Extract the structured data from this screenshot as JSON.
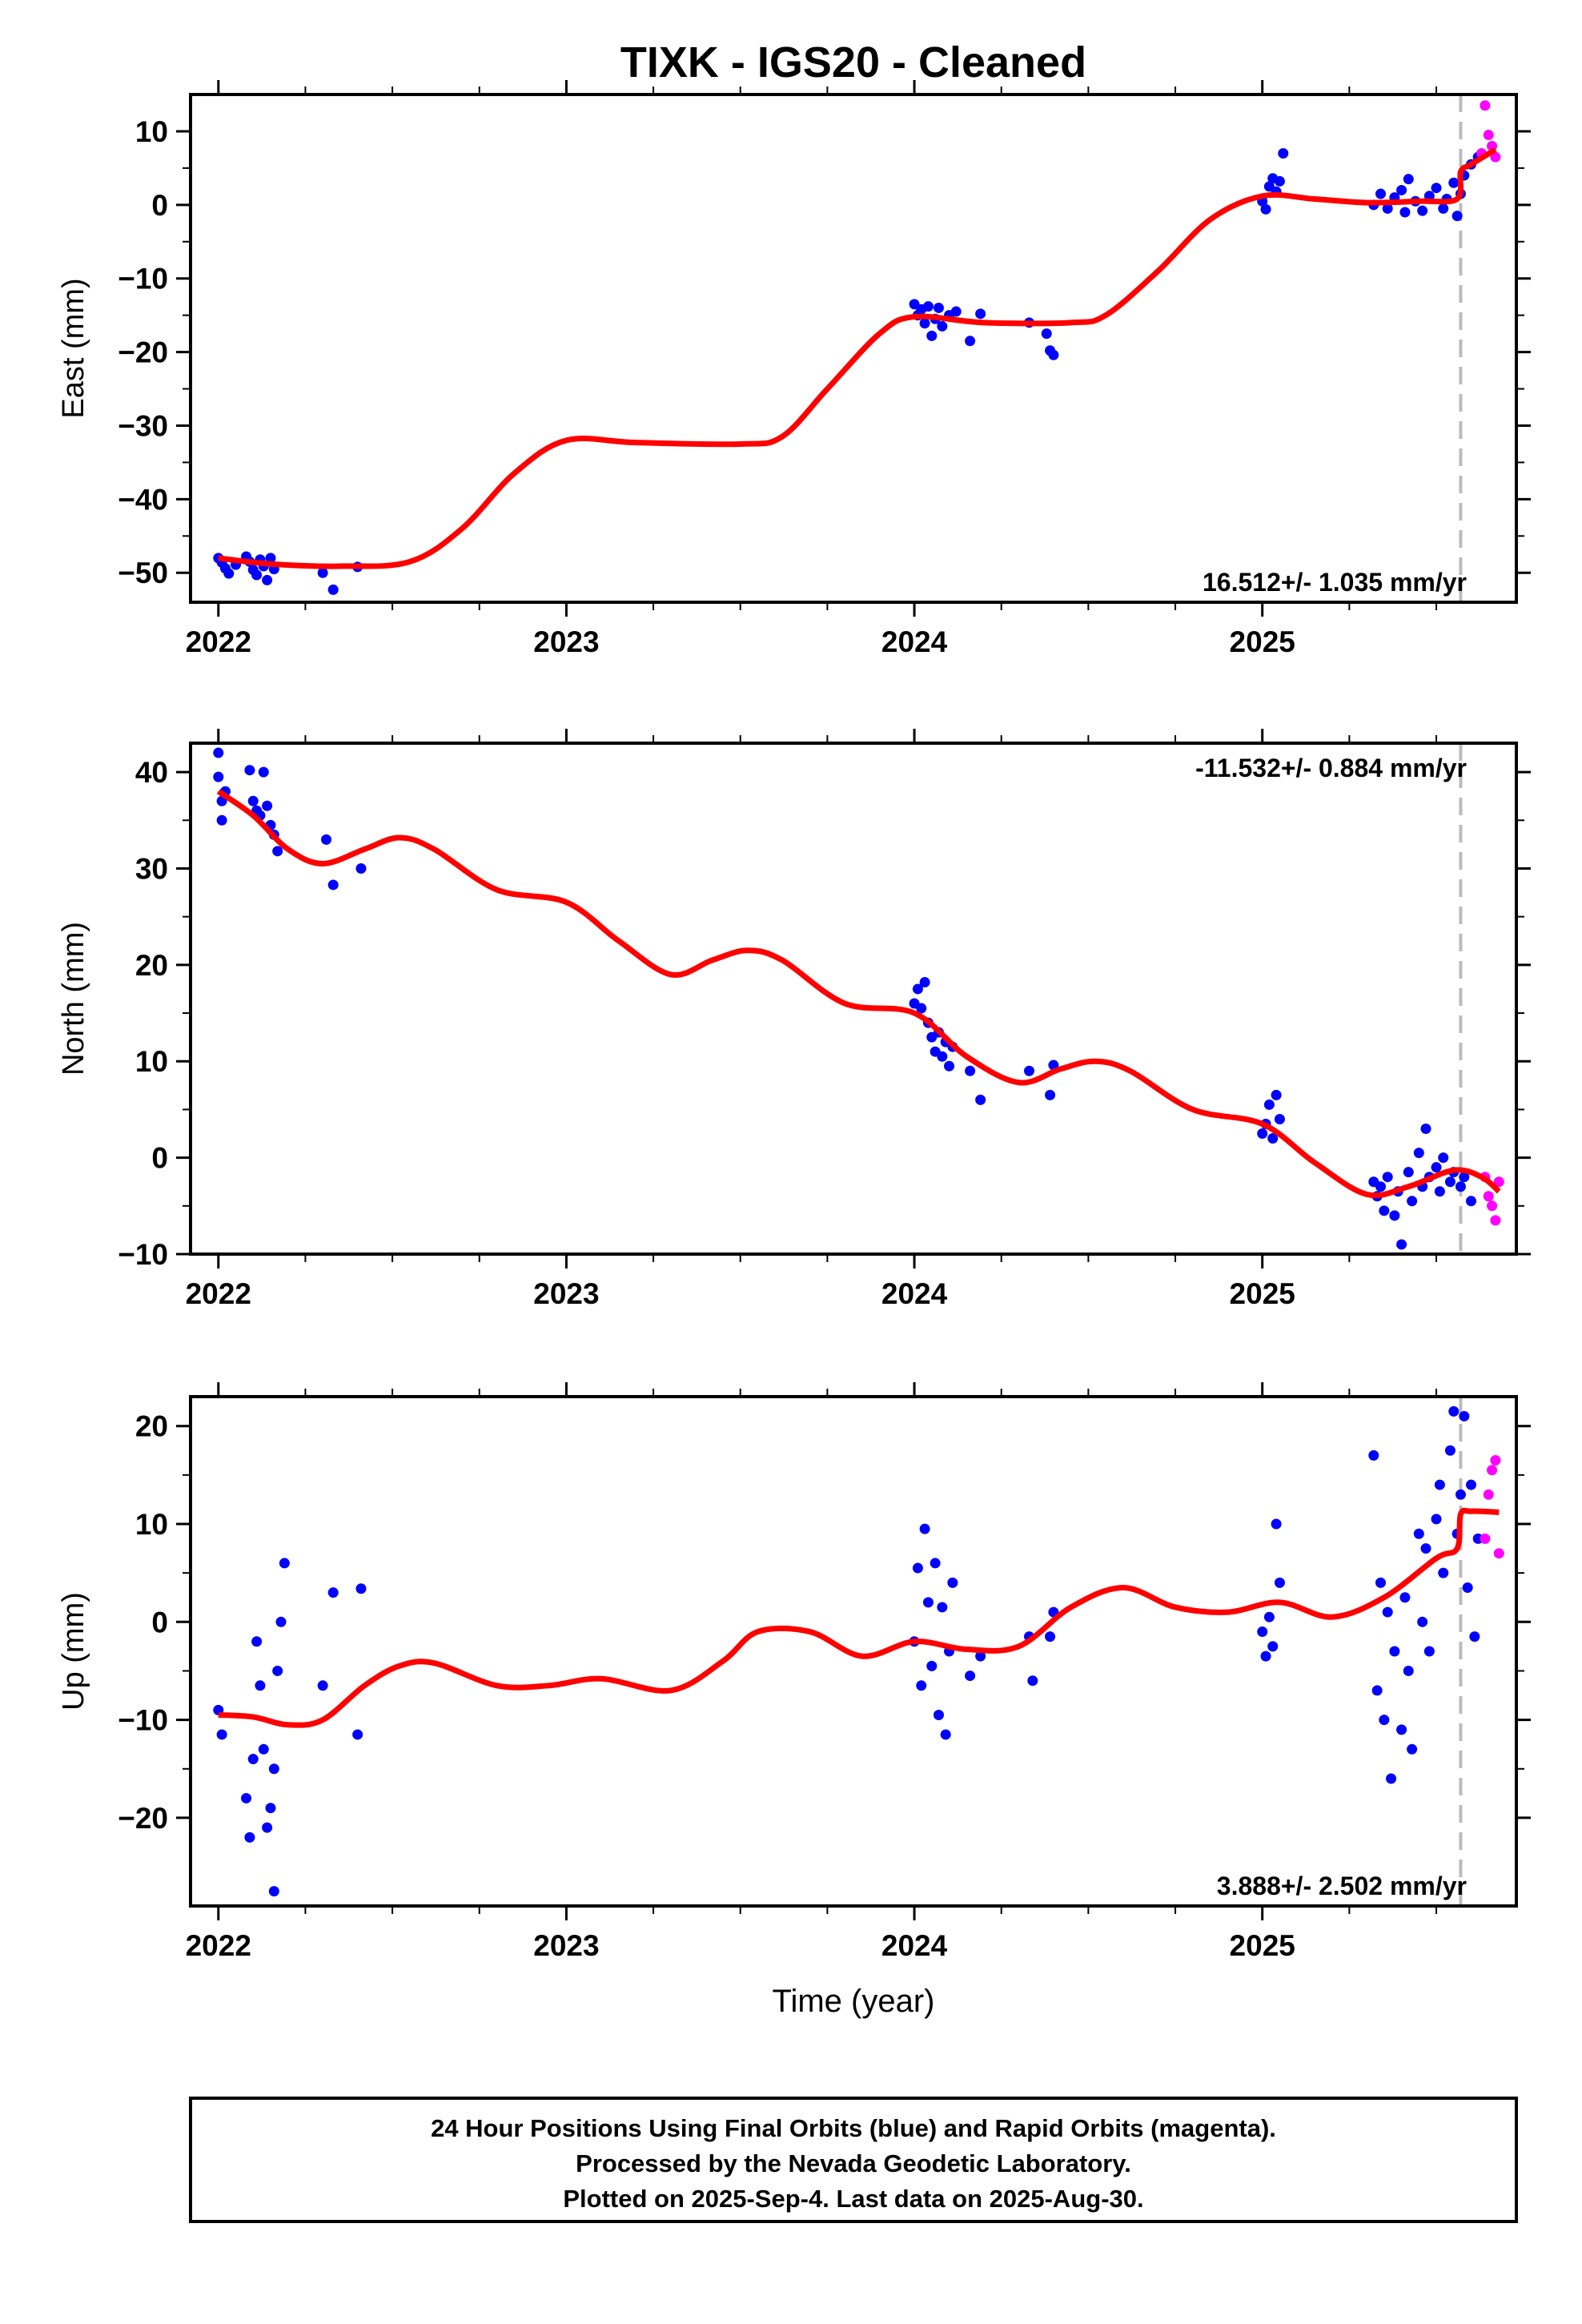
{
  "title": "TIXK  - IGS20 - Cleaned",
  "xlabel": "Time (year)",
  "colors": {
    "final": "#0000ff",
    "rapid": "#ff00ff",
    "model": "#ff0000",
    "dashed": "#bbbbbb"
  },
  "chart_data": [
    {
      "type": "scatter",
      "ylabel": "East (mm)",
      "xlim": [
        2021.92,
        2025.73
      ],
      "ylim": [
        -54,
        15
      ],
      "xticks": [
        2022,
        2023,
        2024,
        2025
      ],
      "yticks": [
        -50,
        -40,
        -30,
        -20,
        -10,
        0,
        10
      ],
      "rate_label": "16.512+/- 1.035 mm/yr",
      "rate_position": "bottom-right",
      "dashed_line_x": 2025.57,
      "final": [
        [
          2022.0,
          -48.0
        ],
        [
          2022.01,
          -48.6
        ],
        [
          2022.02,
          -49.4
        ],
        [
          2022.03,
          -50.1
        ],
        [
          2022.05,
          -48.9
        ],
        [
          2022.08,
          -47.8
        ],
        [
          2022.09,
          -48.5
        ],
        [
          2022.1,
          -49.6
        ],
        [
          2022.11,
          -50.3
        ],
        [
          2022.12,
          -48.2
        ],
        [
          2022.13,
          -49.1
        ],
        [
          2022.14,
          -51.0
        ],
        [
          2022.15,
          -48.0
        ],
        [
          2022.16,
          -49.5
        ],
        [
          2022.3,
          -50.0
        ],
        [
          2022.33,
          -52.3
        ],
        [
          2022.4,
          -49.2
        ],
        [
          2025.0,
          0.5
        ],
        [
          2025.01,
          -0.6
        ],
        [
          2025.02,
          2.5
        ],
        [
          2025.03,
          3.6
        ],
        [
          2025.04,
          1.8
        ],
        [
          2025.05,
          3.2
        ],
        [
          2025.06,
          7.0
        ],
        [
          2025.32,
          0.0
        ],
        [
          2025.34,
          1.5
        ],
        [
          2025.36,
          -0.5
        ],
        [
          2025.38,
          1.0
        ],
        [
          2025.4,
          2.0
        ],
        [
          2025.41,
          -1.0
        ],
        [
          2025.42,
          3.5
        ],
        [
          2025.44,
          0.5
        ],
        [
          2025.46,
          -0.8
        ],
        [
          2025.48,
          1.2
        ],
        [
          2025.5,
          2.3
        ],
        [
          2025.52,
          -0.5
        ],
        [
          2025.53,
          0.8
        ],
        [
          2025.55,
          3.0
        ],
        [
          2025.56,
          -1.5
        ],
        [
          2025.57,
          1.5
        ],
        [
          2025.58,
          4.0
        ],
        [
          2025.6,
          5.5
        ],
        [
          2025.62,
          6.5
        ],
        [
          2024.0,
          -13.5
        ],
        [
          2024.01,
          -15.0
        ],
        [
          2024.02,
          -14.2
        ],
        [
          2024.03,
          -16.1
        ],
        [
          2024.04,
          -13.8
        ],
        [
          2024.05,
          -17.8
        ],
        [
          2024.06,
          -15.5
        ],
        [
          2024.07,
          -14.0
        ],
        [
          2024.08,
          -16.5
        ],
        [
          2024.1,
          -15.0
        ],
        [
          2024.12,
          -14.5
        ],
        [
          2024.16,
          -18.5
        ],
        [
          2024.19,
          -14.8
        ],
        [
          2024.33,
          -16.0
        ],
        [
          2024.38,
          -17.5
        ],
        [
          2024.39,
          -19.8
        ],
        [
          2024.4,
          -20.4
        ]
      ],
      "rapid": [
        [
          2025.63,
          7.0
        ],
        [
          2025.64,
          13.5
        ],
        [
          2025.65,
          9.5
        ],
        [
          2025.66,
          8.0
        ],
        [
          2025.67,
          6.5
        ]
      ],
      "model": [
        [
          2022.0,
          -48.0
        ],
        [
          2022.15,
          -48.8
        ],
        [
          2022.35,
          -49.1
        ],
        [
          2022.55,
          -48.5
        ],
        [
          2022.7,
          -44.0
        ],
        [
          2022.85,
          -36.5
        ],
        [
          2023.0,
          -32.0
        ],
        [
          2023.2,
          -32.3
        ],
        [
          2023.5,
          -32.5
        ],
        [
          2023.62,
          -31.5
        ],
        [
          2023.75,
          -25.0
        ],
        [
          2023.9,
          -17.5
        ],
        [
          2024.0,
          -15.2
        ],
        [
          2024.2,
          -16.0
        ],
        [
          2024.45,
          -16.0
        ],
        [
          2024.55,
          -15.0
        ],
        [
          2024.7,
          -9.0
        ],
        [
          2024.85,
          -2.0
        ],
        [
          2025.0,
          1.2
        ],
        [
          2025.15,
          0.8
        ],
        [
          2025.3,
          0.3
        ],
        [
          2025.45,
          0.5
        ],
        [
          2025.56,
          0.8
        ],
        [
          2025.57,
          4.5
        ],
        [
          2025.6,
          5.5
        ],
        [
          2025.67,
          7.5
        ]
      ]
    },
    {
      "type": "scatter",
      "ylabel": "North (mm)",
      "xlim": [
        2021.92,
        2025.73
      ],
      "ylim": [
        -10,
        43
      ],
      "xticks": [
        2022,
        2023,
        2024,
        2025
      ],
      "yticks": [
        -10,
        0,
        10,
        20,
        30,
        40
      ],
      "rate_label": "-11.532+/- 0.884 mm/yr",
      "rate_position": "top-right",
      "dashed_line_x": 2025.57,
      "final": [
        [
          2022.0,
          42.0
        ],
        [
          2022.0,
          39.5
        ],
        [
          2022.01,
          37.0
        ],
        [
          2022.01,
          35.0
        ],
        [
          2022.02,
          38.0
        ],
        [
          2022.09,
          40.2
        ],
        [
          2022.1,
          37.0
        ],
        [
          2022.11,
          36.0
        ],
        [
          2022.12,
          35.5
        ],
        [
          2022.13,
          40.0
        ],
        [
          2022.14,
          36.5
        ],
        [
          2022.15,
          34.5
        ],
        [
          2022.16,
          33.5
        ],
        [
          2022.17,
          31.8
        ],
        [
          2022.31,
          33.0
        ],
        [
          2022.33,
          28.3
        ],
        [
          2022.41,
          30.0
        ],
        [
          2024.0,
          16.0
        ],
        [
          2024.01,
          17.5
        ],
        [
          2024.02,
          15.5
        ],
        [
          2024.03,
          18.2
        ],
        [
          2024.04,
          14.0
        ],
        [
          2024.05,
          12.5
        ],
        [
          2024.06,
          11.0
        ],
        [
          2024.07,
          13.0
        ],
        [
          2024.08,
          10.5
        ],
        [
          2024.09,
          12.0
        ],
        [
          2024.1,
          9.5
        ],
        [
          2024.11,
          11.5
        ],
        [
          2024.16,
          9.0
        ],
        [
          2024.19,
          6.0
        ],
        [
          2024.33,
          9.0
        ],
        [
          2024.39,
          6.5
        ],
        [
          2024.4,
          9.6
        ],
        [
          2025.0,
          2.5
        ],
        [
          2025.01,
          3.5
        ],
        [
          2025.02,
          5.5
        ],
        [
          2025.03,
          2.0
        ],
        [
          2025.04,
          6.5
        ],
        [
          2025.05,
          4.0
        ],
        [
          2025.32,
          -2.5
        ],
        [
          2025.33,
          -4.0
        ],
        [
          2025.34,
          -3.0
        ],
        [
          2025.35,
          -5.5
        ],
        [
          2025.36,
          -2.0
        ],
        [
          2025.38,
          -6.0
        ],
        [
          2025.39,
          -3.5
        ],
        [
          2025.4,
          -9.0
        ],
        [
          2025.42,
          -1.5
        ],
        [
          2025.43,
          -4.5
        ],
        [
          2025.45,
          0.5
        ],
        [
          2025.46,
          -3.0
        ],
        [
          2025.47,
          3.0
        ],
        [
          2025.48,
          -2.0
        ],
        [
          2025.5,
          -1.0
        ],
        [
          2025.51,
          -3.5
        ],
        [
          2025.52,
          0.0
        ],
        [
          2025.54,
          -2.5
        ],
        [
          2025.55,
          -1.5
        ],
        [
          2025.57,
          -3.0
        ],
        [
          2025.58,
          -2.0
        ],
        [
          2025.6,
          -4.5
        ]
      ],
      "rapid": [
        [
          2025.64,
          -2.0
        ],
        [
          2025.65,
          -4.0
        ],
        [
          2025.66,
          -5.0
        ],
        [
          2025.67,
          -6.5
        ],
        [
          2025.68,
          -2.5
        ]
      ],
      "model": [
        [
          2022.0,
          38.0
        ],
        [
          2022.1,
          35.5
        ],
        [
          2022.2,
          32.0
        ],
        [
          2022.3,
          30.5
        ],
        [
          2022.42,
          32.0
        ],
        [
          2022.52,
          33.2
        ],
        [
          2022.62,
          32.0
        ],
        [
          2022.8,
          27.8
        ],
        [
          2023.0,
          26.5
        ],
        [
          2023.15,
          22.5
        ],
        [
          2023.3,
          19.0
        ],
        [
          2023.42,
          20.5
        ],
        [
          2023.52,
          21.5
        ],
        [
          2023.62,
          20.5
        ],
        [
          2023.8,
          16.0
        ],
        [
          2024.0,
          15.0
        ],
        [
          2024.15,
          10.5
        ],
        [
          2024.3,
          7.8
        ],
        [
          2024.42,
          9.2
        ],
        [
          2024.52,
          10.0
        ],
        [
          2024.62,
          9.0
        ],
        [
          2024.8,
          5.0
        ],
        [
          2025.0,
          3.5
        ],
        [
          2025.15,
          -0.5
        ],
        [
          2025.3,
          -3.8
        ],
        [
          2025.42,
          -3.0
        ],
        [
          2025.55,
          -1.3
        ],
        [
          2025.63,
          -2.0
        ],
        [
          2025.68,
          -3.5
        ]
      ]
    },
    {
      "type": "scatter",
      "ylabel": "Up (mm)",
      "xlim": [
        2021.92,
        2025.73
      ],
      "ylim": [
        -29,
        23
      ],
      "xticks": [
        2022,
        2023,
        2024,
        2025
      ],
      "yticks": [
        -20,
        -10,
        0,
        10,
        20
      ],
      "rate_label": "3.888+/- 2.502 mm/yr",
      "rate_position": "bottom-right",
      "dashed_line_x": 2025.57,
      "final": [
        [
          2022.0,
          -9.0
        ],
        [
          2022.01,
          -11.5
        ],
        [
          2022.08,
          -18.0
        ],
        [
          2022.09,
          -22.0
        ],
        [
          2022.1,
          -14.0
        ],
        [
          2022.11,
          -2.0
        ],
        [
          2022.12,
          -6.5
        ],
        [
          2022.13,
          -13.0
        ],
        [
          2022.14,
          -21.0
        ],
        [
          2022.15,
          -19.0
        ],
        [
          2022.16,
          -15.0
        ],
        [
          2022.17,
          -5.0
        ],
        [
          2022.18,
          0.0
        ],
        [
          2022.19,
          6.0
        ],
        [
          2022.16,
          -27.5
        ],
        [
          2022.3,
          -6.5
        ],
        [
          2022.33,
          3.0
        ],
        [
          2022.4,
          -11.5
        ],
        [
          2022.41,
          3.4
        ],
        [
          2024.0,
          -2.0
        ],
        [
          2024.01,
          5.5
        ],
        [
          2024.02,
          -6.5
        ],
        [
          2024.03,
          9.5
        ],
        [
          2024.04,
          2.0
        ],
        [
          2024.05,
          -4.5
        ],
        [
          2024.06,
          6.0
        ],
        [
          2024.07,
          -9.5
        ],
        [
          2024.08,
          1.5
        ],
        [
          2024.09,
          -11.5
        ],
        [
          2024.1,
          -3.0
        ],
        [
          2024.11,
          4.0
        ],
        [
          2024.16,
          -5.5
        ],
        [
          2024.19,
          -3.5
        ],
        [
          2024.33,
          -1.5
        ],
        [
          2024.34,
          -6.0
        ],
        [
          2024.39,
          -1.5
        ],
        [
          2024.4,
          1.0
        ],
        [
          2025.0,
          -1.0
        ],
        [
          2025.01,
          -3.5
        ],
        [
          2025.02,
          0.5
        ],
        [
          2025.03,
          -2.5
        ],
        [
          2025.04,
          10.0
        ],
        [
          2025.05,
          4.0
        ],
        [
          2025.32,
          17.0
        ],
        [
          2025.33,
          -7.0
        ],
        [
          2025.34,
          4.0
        ],
        [
          2025.35,
          -10.0
        ],
        [
          2025.36,
          1.0
        ],
        [
          2025.37,
          -16.0
        ],
        [
          2025.38,
          -3.0
        ],
        [
          2025.4,
          -11.0
        ],
        [
          2025.41,
          2.5
        ],
        [
          2025.42,
          -5.0
        ],
        [
          2025.43,
          -13.0
        ],
        [
          2025.45,
          9.0
        ],
        [
          2025.46,
          0.0
        ],
        [
          2025.47,
          7.5
        ],
        [
          2025.48,
          -3.0
        ],
        [
          2025.5,
          10.5
        ],
        [
          2025.51,
          14.0
        ],
        [
          2025.52,
          5.0
        ],
        [
          2025.54,
          17.5
        ],
        [
          2025.55,
          21.5
        ],
        [
          2025.56,
          9.0
        ],
        [
          2025.57,
          13.0
        ],
        [
          2025.58,
          21.0
        ],
        [
          2025.59,
          3.5
        ],
        [
          2025.6,
          14.0
        ],
        [
          2025.62,
          8.5
        ],
        [
          2025.61,
          -1.5
        ]
      ],
      "rapid": [
        [
          2025.64,
          8.5
        ],
        [
          2025.65,
          13.0
        ],
        [
          2025.66,
          15.5
        ],
        [
          2025.67,
          16.5
        ],
        [
          2025.68,
          7.0
        ]
      ],
      "model": [
        [
          2022.0,
          -9.5
        ],
        [
          2022.1,
          -9.7
        ],
        [
          2022.2,
          -10.5
        ],
        [
          2022.3,
          -10.0
        ],
        [
          2022.42,
          -6.5
        ],
        [
          2022.52,
          -4.5
        ],
        [
          2022.62,
          -4.2
        ],
        [
          2022.8,
          -6.5
        ],
        [
          2022.95,
          -6.5
        ],
        [
          2023.1,
          -5.8
        ],
        [
          2023.3,
          -7.0
        ],
        [
          2023.45,
          -4.0
        ],
        [
          2023.55,
          -1.0
        ],
        [
          2023.7,
          -1.0
        ],
        [
          2023.85,
          -3.5
        ],
        [
          2024.0,
          -2.0
        ],
        [
          2024.15,
          -2.8
        ],
        [
          2024.3,
          -2.5
        ],
        [
          2024.45,
          1.5
        ],
        [
          2024.6,
          3.5
        ],
        [
          2024.75,
          1.5
        ],
        [
          2024.9,
          1.0
        ],
        [
          2025.05,
          2.0
        ],
        [
          2025.2,
          0.5
        ],
        [
          2025.35,
          2.5
        ],
        [
          2025.5,
          6.5
        ],
        [
          2025.56,
          7.5
        ],
        [
          2025.57,
          11.0
        ],
        [
          2025.6,
          11.3
        ],
        [
          2025.68,
          11.2
        ]
      ]
    }
  ],
  "footer": {
    "line1": "24 Hour Positions Using Final Orbits (blue) and Rapid Orbits (magenta).",
    "line2": "Processed by the Nevada Geodetic Laboratory.",
    "line3": "Plotted on 2025-Sep-4. Last data on 2025-Aug-30."
  }
}
